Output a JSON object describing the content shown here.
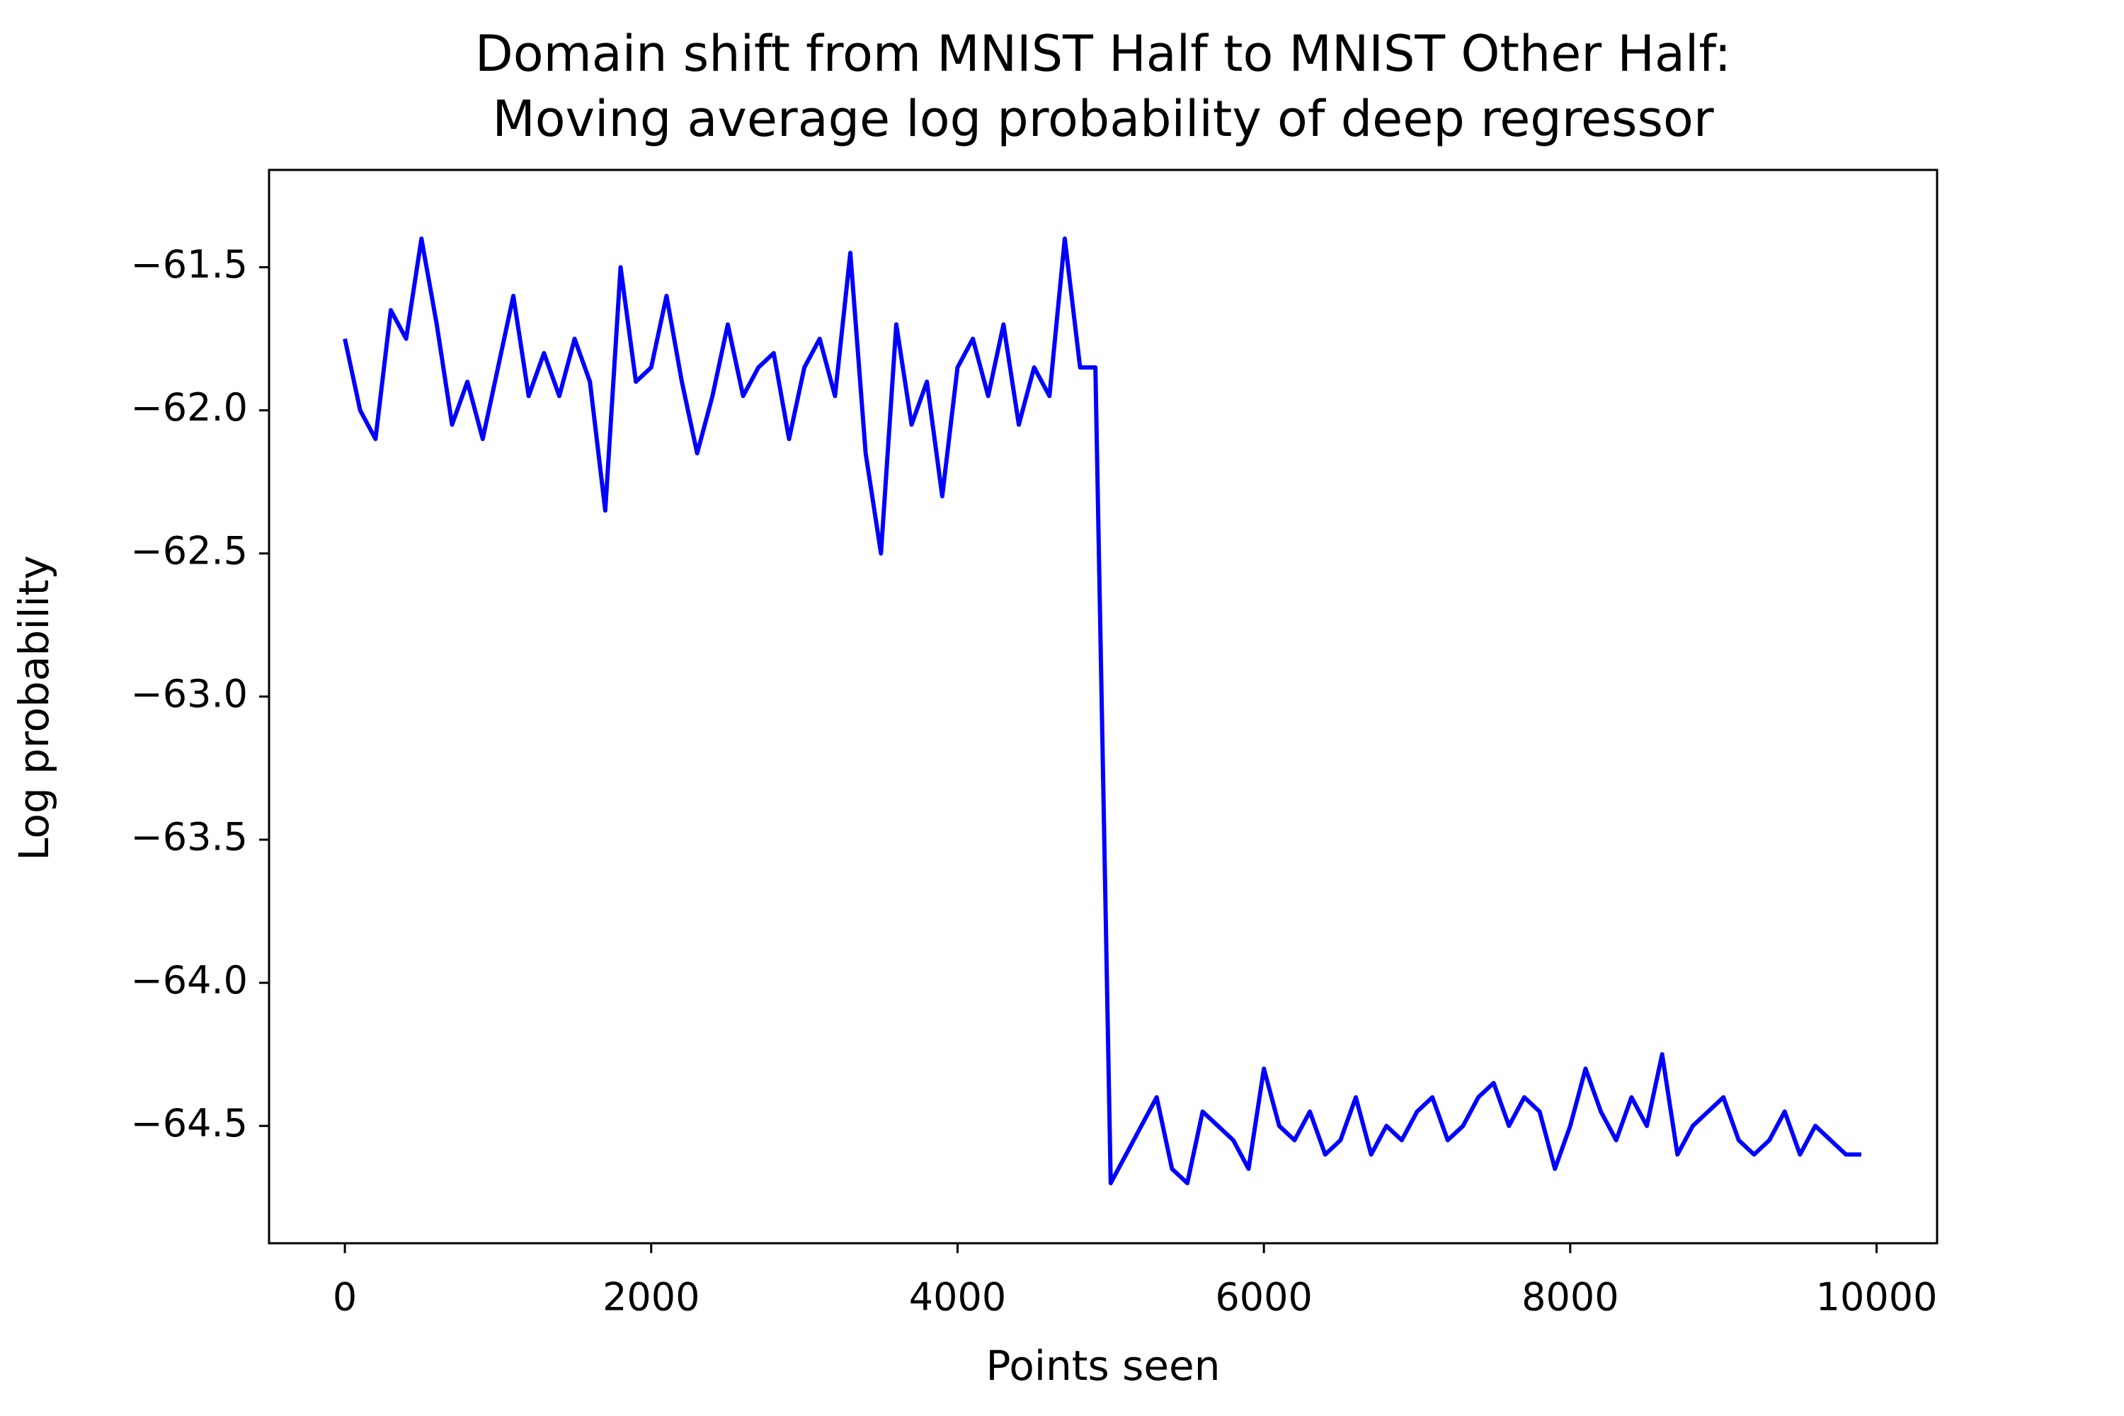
{
  "chart_data": {
    "type": "line",
    "title": [
      "Domain shift from MNIST Half to MNIST Other Half:",
      "Moving average log probability of deep regressor"
    ],
    "xlabel": "Points seen",
    "ylabel": "Log probability",
    "xlim": [
      -495,
      10395
    ],
    "ylim": [
      -64.91,
      -61.16
    ],
    "xticks": [
      0,
      2000,
      4000,
      6000,
      8000,
      10000
    ],
    "yticks": [
      {
        "value": -64.5,
        "label": "−64.5"
      },
      {
        "value": -64.0,
        "label": "−64.0"
      },
      {
        "value": -63.5,
        "label": "−63.5"
      },
      {
        "value": -63.0,
        "label": "−63.0"
      },
      {
        "value": -62.5,
        "label": "−62.5"
      },
      {
        "value": -62.0,
        "label": "−62.0"
      },
      {
        "value": -61.5,
        "label": "−61.5"
      }
    ],
    "grid": false,
    "x": [
      0,
      100,
      200,
      300,
      400,
      500,
      600,
      700,
      800,
      900,
      1000,
      1100,
      1200,
      1300,
      1400,
      1500,
      1600,
      1700,
      1800,
      1900,
      2000,
      2100,
      2200,
      2300,
      2400,
      2500,
      2600,
      2700,
      2800,
      2900,
      3000,
      3100,
      3200,
      3300,
      3400,
      3500,
      3600,
      3700,
      3800,
      3900,
      4000,
      4100,
      4200,
      4300,
      4400,
      4500,
      4600,
      4700,
      4800,
      4900,
      5000,
      5100,
      5200,
      5300,
      5400,
      5500,
      5600,
      5700,
      5800,
      5900,
      6000,
      6100,
      6200,
      6300,
      6400,
      6500,
      6600,
      6700,
      6800,
      6900,
      7000,
      7100,
      7200,
      7300,
      7400,
      7500,
      7600,
      7700,
      7800,
      7900,
      8000,
      8100,
      8200,
      8300,
      8400,
      8500,
      8600,
      8700,
      8800,
      8900,
      9000,
      9100,
      9200,
      9300,
      9400,
      9500,
      9600,
      9700,
      9800,
      9900
    ],
    "series": [
      {
        "color": "#0000ff",
        "values": [
          -61.75,
          -62.0,
          -62.1,
          -61.65,
          -61.75,
          -61.4,
          -61.7,
          -62.05,
          -61.9,
          -62.1,
          -61.85,
          -61.6,
          -61.95,
          -61.8,
          -61.95,
          -61.75,
          -61.9,
          -62.35,
          -61.5,
          -61.9,
          -61.85,
          -61.6,
          -61.9,
          -62.15,
          -61.95,
          -61.7,
          -61.95,
          -61.85,
          -61.8,
          -62.1,
          -61.85,
          -61.75,
          -61.95,
          -61.45,
          -62.15,
          -62.5,
          -61.7,
          -62.05,
          -61.9,
          -62.3,
          -61.85,
          -61.75,
          -61.95,
          -61.7,
          -62.05,
          -61.85,
          -61.95,
          -61.4,
          -61.85,
          -61.85,
          -64.7,
          -64.6,
          -64.5,
          -64.4,
          -64.65,
          -64.7,
          -64.45,
          -64.5,
          -64.55,
          -64.65,
          -64.3,
          -64.5,
          -64.55,
          -64.45,
          -64.6,
          -64.55,
          -64.4,
          -64.6,
          -64.5,
          -64.55,
          -64.45,
          -64.4,
          -64.55,
          -64.5,
          -64.4,
          -64.35,
          -64.5,
          -64.4,
          -64.45,
          -64.65,
          -64.5,
          -64.3,
          -64.45,
          -64.55,
          -64.4,
          -64.5,
          -64.25,
          -64.6,
          -64.5,
          -64.45,
          -64.4,
          -64.55,
          -64.6,
          -64.55,
          -64.45,
          -64.6,
          -64.5,
          -64.55,
          -64.6,
          -64.6
        ]
      }
    ]
  }
}
